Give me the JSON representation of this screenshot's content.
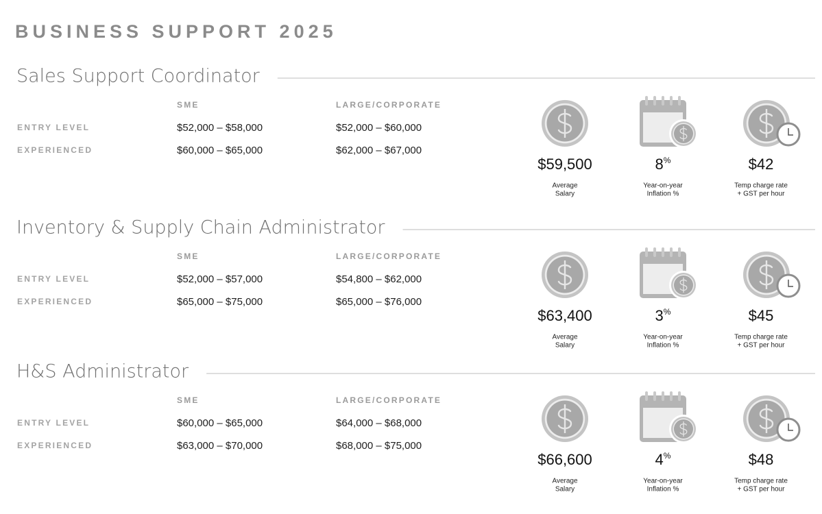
{
  "title": "BUSINESS SUPPORT 2025",
  "sections": [
    {
      "title": "Sales Support Coordinator",
      "columns": [
        "SME",
        "LARGE/CORPORATE"
      ],
      "rows": [
        {
          "label": "ENTRY LEVEL",
          "sme": "$52,000 – $58,000",
          "large": "$52,000 – $60,000"
        },
        {
          "label": "EXPERIENCED",
          "sme": "$60,000 – $65,000",
          "large": "$62,000 – $67,000"
        }
      ],
      "stats": {
        "salary": {
          "value": "$59,500",
          "label": [
            "Average",
            "Salary"
          ]
        },
        "inflation": {
          "value": "8",
          "unit": "%",
          "label": [
            "Year-on-year",
            "Inflation %"
          ]
        },
        "temp": {
          "value": "$42",
          "label": [
            "Temp charge rate",
            "+ GST per hour"
          ]
        }
      }
    },
    {
      "title": "Inventory & Supply Chain Administrator",
      "columns": [
        "SME",
        "LARGE/CORPORATE"
      ],
      "rows": [
        {
          "label": "ENTRY LEVEL",
          "sme": "$52,000 – $57,000",
          "large": "$54,800 – $62,000"
        },
        {
          "label": "EXPERIENCED",
          "sme": "$65,000 – $75,000",
          "large": "$65,000 – $76,000"
        }
      ],
      "stats": {
        "salary": {
          "value": "$63,400",
          "label": [
            "Average",
            "Salary"
          ]
        },
        "inflation": {
          "value": "3",
          "unit": "%",
          "label": [
            "Year-on-year",
            "Inflation %"
          ]
        },
        "temp": {
          "value": "$45",
          "label": [
            "Temp charge rate",
            "+ GST per hour"
          ]
        }
      }
    },
    {
      "title": "H&S Administrator",
      "columns": [
        "SME",
        "LARGE/CORPORATE"
      ],
      "rows": [
        {
          "label": "ENTRY LEVEL",
          "sme": "$60,000 – $65,000",
          "large": "$64,000 – $68,000"
        },
        {
          "label": "EXPERIENCED",
          "sme": "$63,000 – $70,000",
          "large": "$68,000 – $75,000"
        }
      ],
      "stats": {
        "salary": {
          "value": "$66,600",
          "label": [
            "Average",
            "Salary"
          ]
        },
        "inflation": {
          "value": "4",
          "unit": "%",
          "label": [
            "Year-on-year",
            "Inflation %"
          ]
        },
        "temp": {
          "value": "$48",
          "label": [
            "Temp charge rate",
            "+ GST per hour"
          ]
        }
      }
    }
  ]
}
